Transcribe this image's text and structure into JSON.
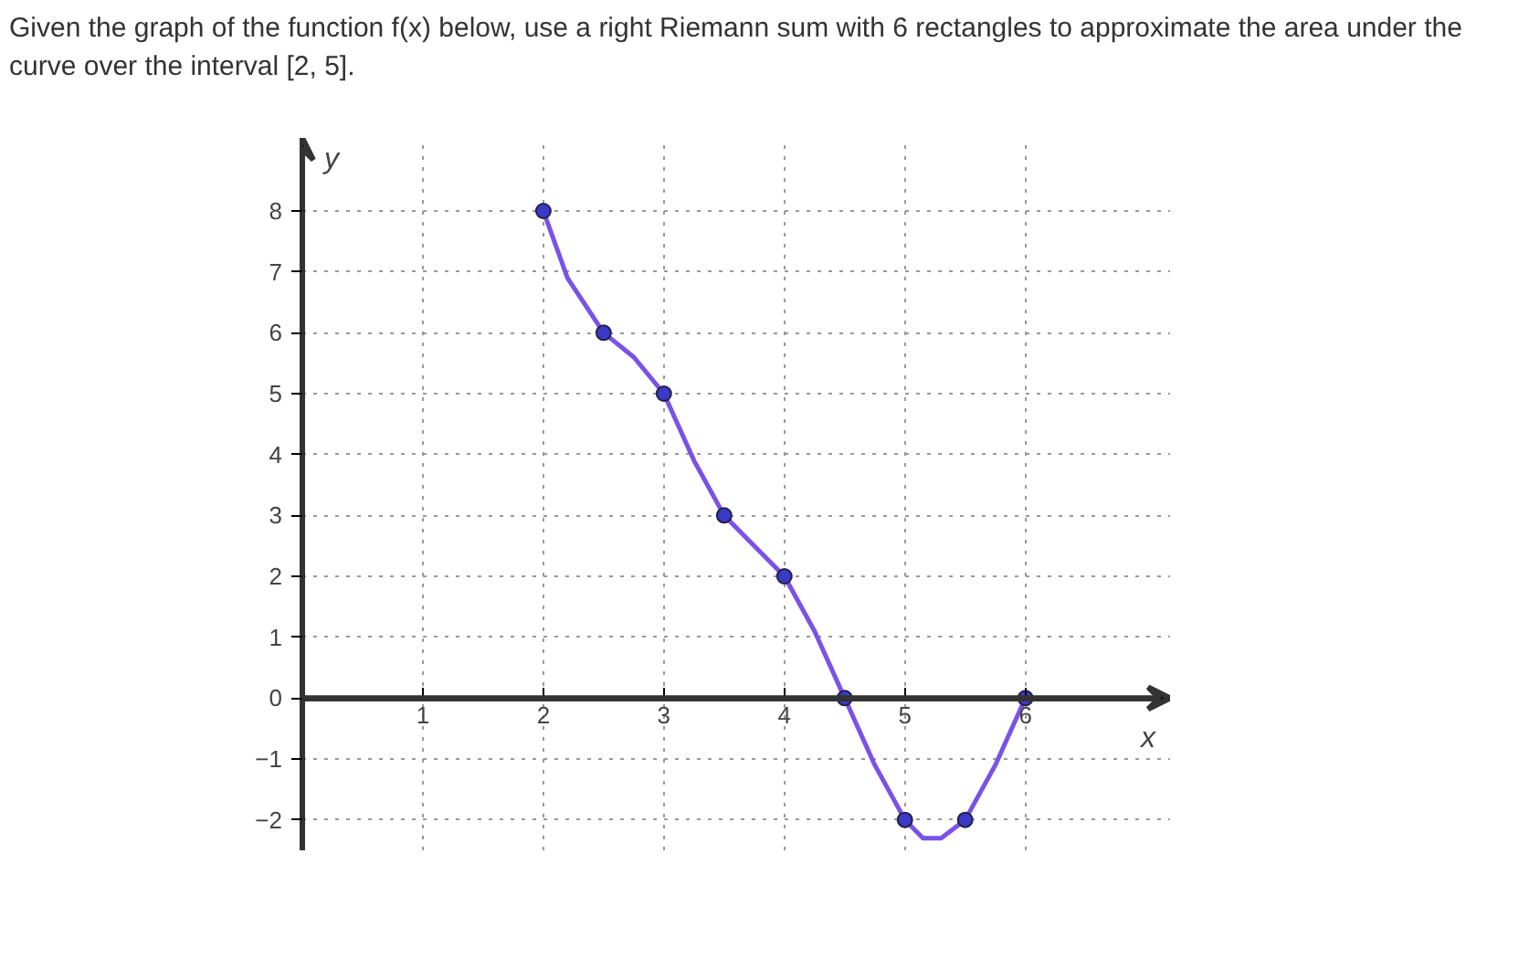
{
  "chart_data": {
    "type": "line",
    "title": "Given the graph of the function f(x) below, use a right Riemann sum with 6 rectangles to approximate the area under the curve over the interval [2, 5].",
    "xlabel": "x",
    "ylabel": "y",
    "xlim": [
      0,
      7.2
    ],
    "ylim": [
      -2.5,
      9.2
    ],
    "xticks": [
      1,
      2,
      3,
      4,
      5,
      6
    ],
    "yticks": [
      -2,
      -1,
      0,
      1,
      2,
      3,
      4,
      5,
      6,
      7,
      8
    ],
    "grid": true,
    "line_style": "solid",
    "series": [
      {
        "color": "#7b52e8",
        "x": [
          2,
          2.2,
          2.5,
          2.75,
          3,
          3.25,
          3.5,
          3.75,
          4,
          4.25,
          4.5,
          4.75,
          5,
          5.15,
          5.3,
          5.5,
          5.75,
          6
        ],
        "values": [
          8,
          6.9,
          6,
          5.6,
          5,
          3.9,
          3,
          2.5,
          2,
          1.1,
          0,
          -1.1,
          -2,
          -2.3,
          -2.3,
          -2,
          -1.1,
          0
        ]
      },
      {
        "type": "scatter",
        "color": "#3a3ac8",
        "marker": "circle",
        "x": [
          2,
          2.5,
          3,
          3.5,
          4,
          4.5,
          5,
          5.5,
          6
        ],
        "values": [
          8,
          6,
          5,
          3,
          2,
          0,
          -2,
          -2,
          0
        ]
      }
    ]
  }
}
